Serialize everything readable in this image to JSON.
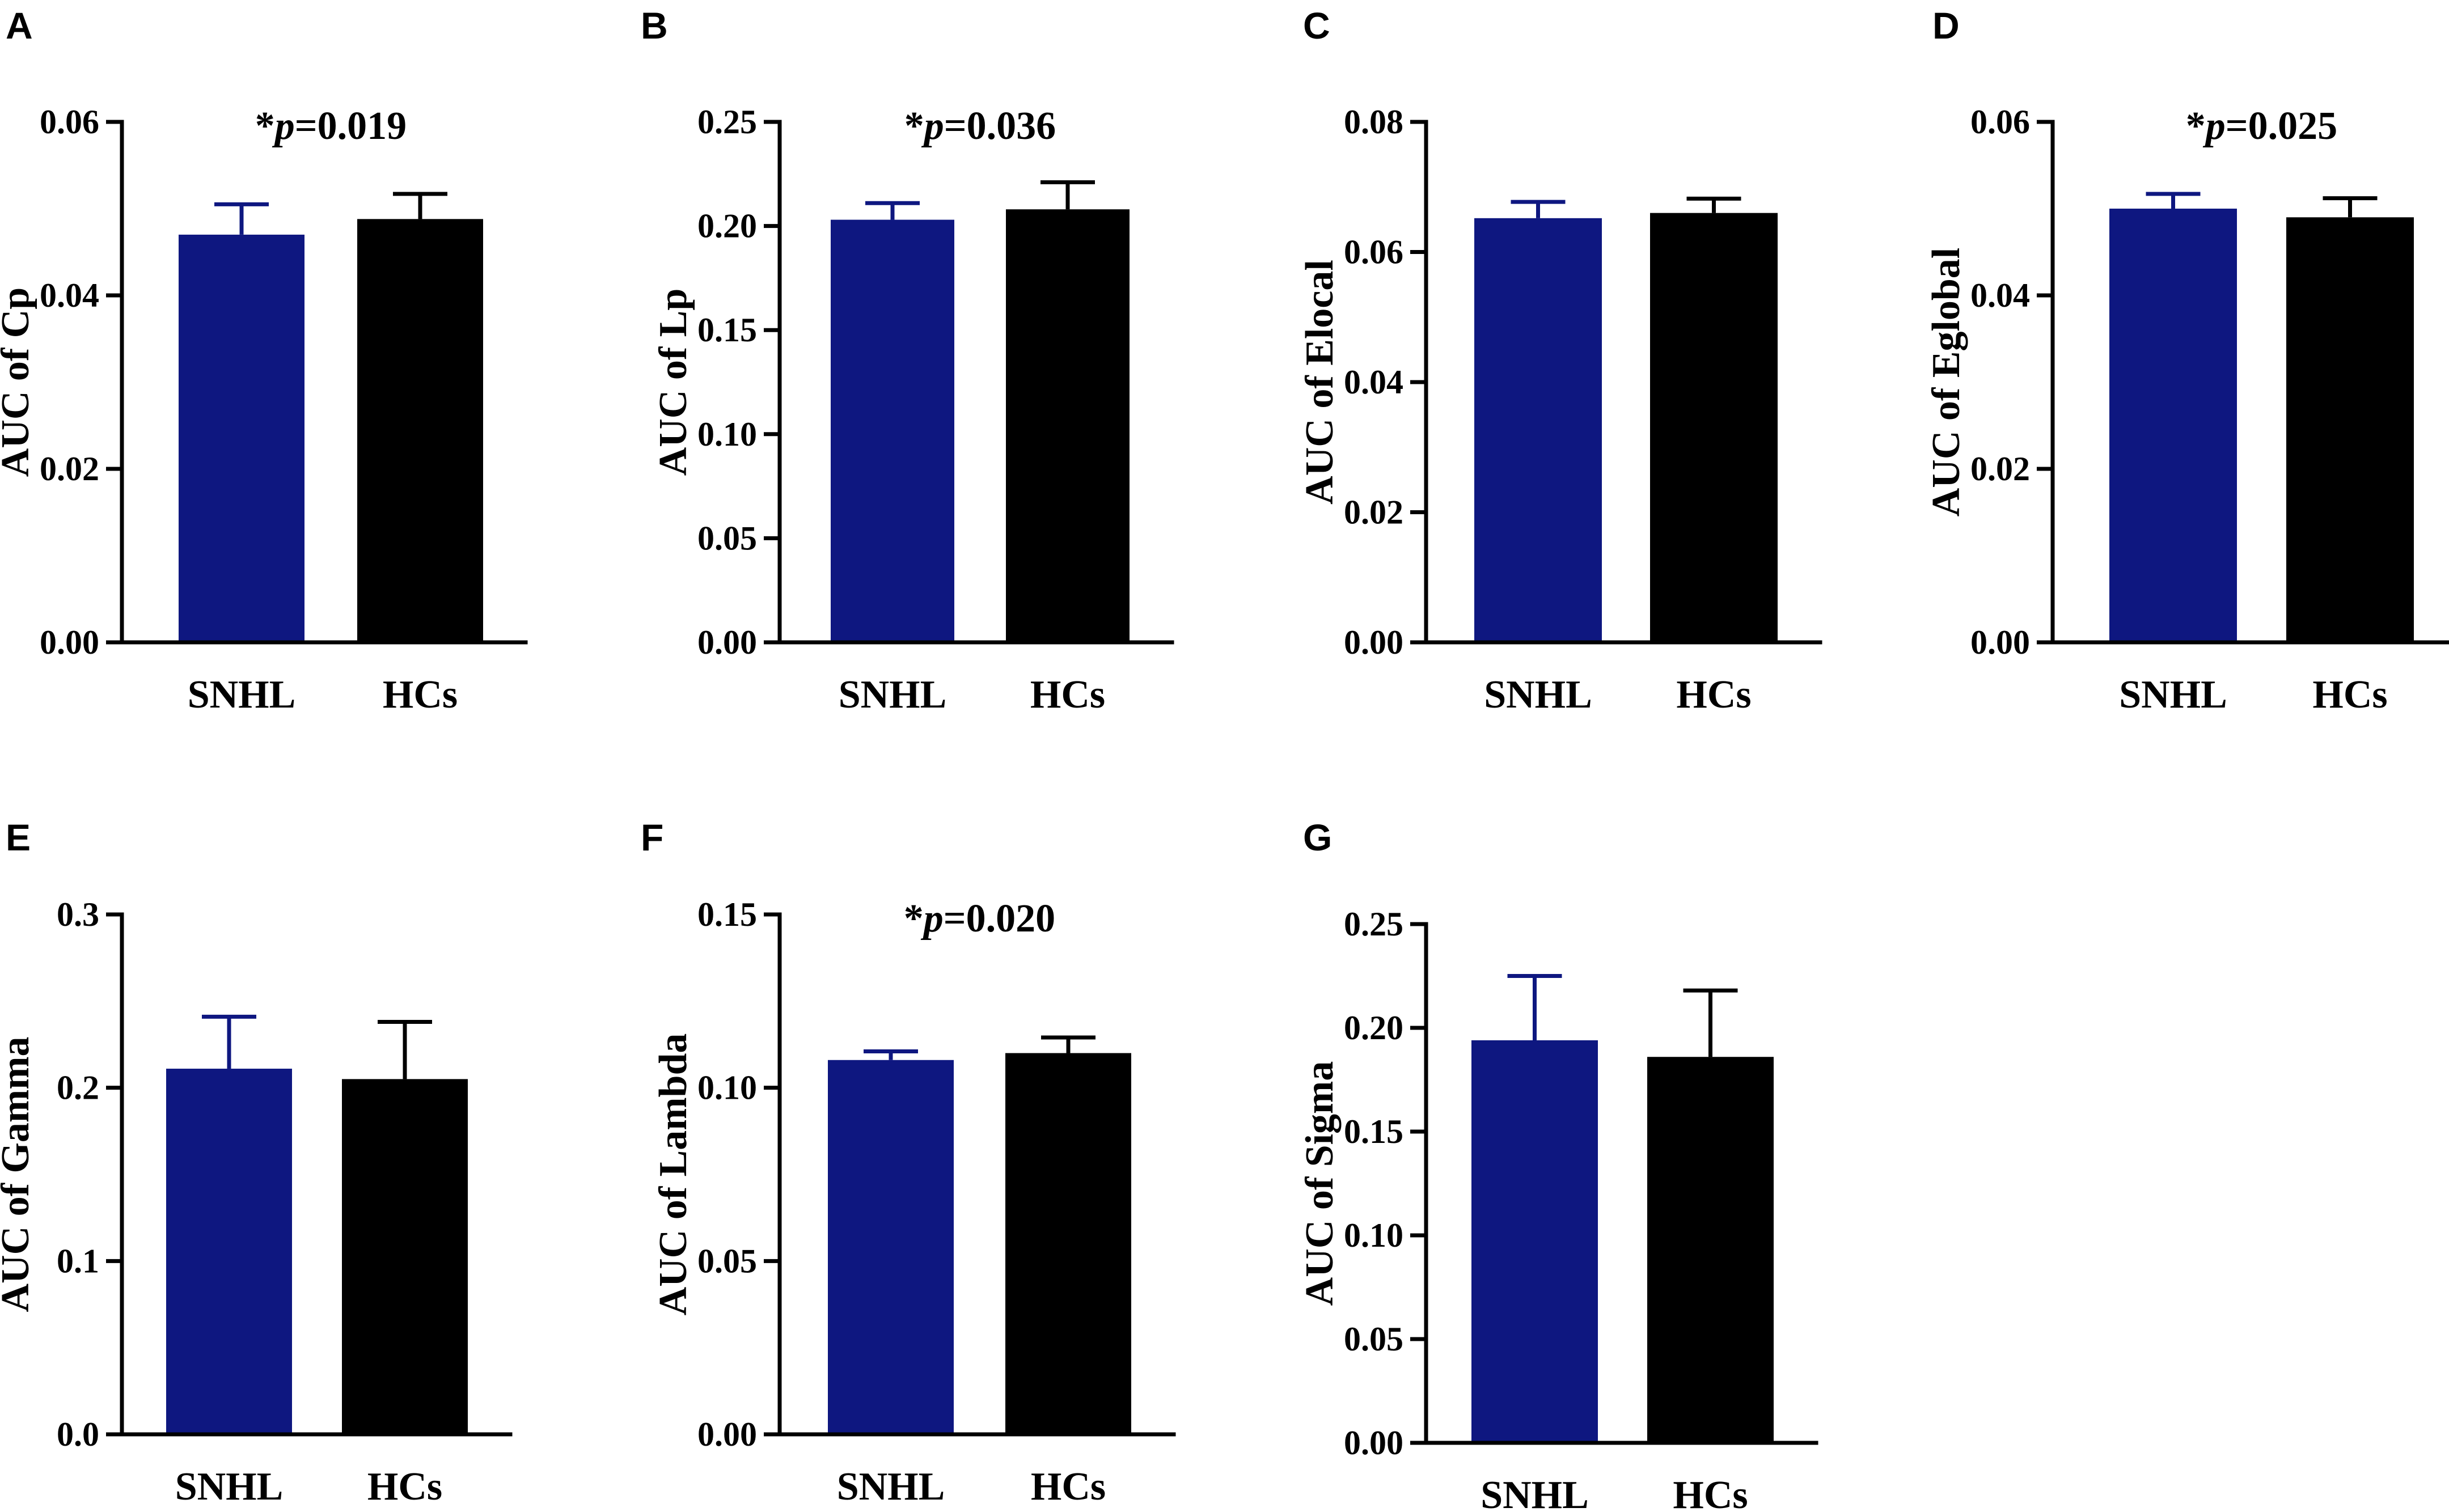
{
  "figure": {
    "colors": {
      "SNHL": "#0e1780",
      "HCs": "#000000",
      "axis": "#000000"
    }
  },
  "chart_data": [
    {
      "panel": "A",
      "type": "bar",
      "categories": [
        "SNHL",
        "HCs"
      ],
      "values": [
        0.047,
        0.0488
      ],
      "errors": [
        0.0035,
        0.0029
      ],
      "ylabel": "AUC of Cp",
      "ylim": [
        0,
        0.06
      ],
      "yticks": [
        0.0,
        0.02,
        0.04,
        0.06
      ],
      "ytick_labels": [
        "0.00",
        "0.02",
        "0.04",
        "0.06"
      ],
      "annotation": {
        "star": "*",
        "p": "p",
        "value": "=0.019"
      }
    },
    {
      "panel": "B",
      "type": "bar",
      "categories": [
        "SNHL",
        "HCs"
      ],
      "values": [
        0.203,
        0.208
      ],
      "errors": [
        0.008,
        0.013
      ],
      "ylabel": "AUC of Lp",
      "ylim": [
        0,
        0.25
      ],
      "yticks": [
        0.0,
        0.05,
        0.1,
        0.15,
        0.2,
        0.25
      ],
      "ytick_labels": [
        "0.00",
        "0.05",
        "0.10",
        "0.15",
        "0.20",
        "0.25"
      ],
      "annotation": {
        "star": "*",
        "p": "p",
        "value": "=0.036"
      }
    },
    {
      "panel": "C",
      "type": "bar",
      "categories": [
        "SNHL",
        "HCs"
      ],
      "values": [
        0.0652,
        0.066
      ],
      "errors": [
        0.0025,
        0.0022
      ],
      "ylabel": "AUC of Elocal",
      "ylim": [
        0,
        0.08
      ],
      "yticks": [
        0.0,
        0.02,
        0.04,
        0.06,
        0.08
      ],
      "ytick_labels": [
        "0.00",
        "0.02",
        "0.04",
        "0.06",
        "0.08"
      ],
      "annotation": null
    },
    {
      "panel": "D",
      "type": "bar",
      "categories": [
        "SNHL",
        "HCs"
      ],
      "values": [
        0.05,
        0.049
      ],
      "errors": [
        0.0017,
        0.0022
      ],
      "ylabel": "AUC of Eglobal",
      "ylim": [
        0,
        0.06
      ],
      "yticks": [
        0.0,
        0.02,
        0.04,
        0.06
      ],
      "ytick_labels": [
        "0.00",
        "0.02",
        "0.04",
        "0.06"
      ],
      "annotation": {
        "star": "*",
        "p": "p",
        "value": "=0.025"
      }
    },
    {
      "panel": "E",
      "type": "bar",
      "categories": [
        "SNHL",
        "HCs"
      ],
      "values": [
        0.211,
        0.205
      ],
      "errors": [
        0.03,
        0.033
      ],
      "ylabel": "AUC of Gamma",
      "ylim": [
        0,
        0.3
      ],
      "yticks": [
        0.0,
        0.1,
        0.2,
        0.3
      ],
      "ytick_labels": [
        "0.0",
        "0.1",
        "0.2",
        "0.3"
      ],
      "annotation": null
    },
    {
      "panel": "F",
      "type": "bar",
      "categories": [
        "SNHL",
        "HCs"
      ],
      "values": [
        0.108,
        0.11
      ],
      "errors": [
        0.0025,
        0.0045
      ],
      "ylabel": "AUC of Lambda",
      "ylim": [
        0,
        0.15
      ],
      "yticks": [
        0.0,
        0.05,
        0.1,
        0.15
      ],
      "ytick_labels": [
        "0.00",
        "0.05",
        "0.10",
        "0.15"
      ],
      "annotation": {
        "star": "*",
        "p": "p",
        "value": "=0.020"
      }
    },
    {
      "panel": "G",
      "type": "bar",
      "categories": [
        "SNHL",
        "HCs"
      ],
      "values": [
        0.194,
        0.186
      ],
      "errors": [
        0.031,
        0.032
      ],
      "ylabel": "AUC of Sigma",
      "ylim": [
        0,
        0.25
      ],
      "yticks": [
        0.0,
        0.05,
        0.1,
        0.15,
        0.2,
        0.25
      ],
      "ytick_labels": [
        "0.00",
        "0.05",
        "0.10",
        "0.15",
        "0.20",
        "0.25"
      ],
      "annotation": null
    }
  ]
}
